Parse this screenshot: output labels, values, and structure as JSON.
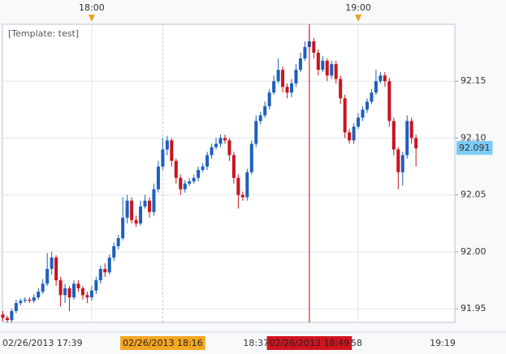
{
  "chart_data": {
    "type": "candlestick",
    "template_label": "[Template: test]",
    "x": [
      "17:40",
      "17:41",
      "17:42",
      "17:43",
      "17:44",
      "17:45",
      "17:46",
      "17:47",
      "17:48",
      "17:49",
      "17:50",
      "17:51",
      "17:52",
      "17:53",
      "17:54",
      "17:55",
      "17:56",
      "17:57",
      "17:58",
      "17:59",
      "18:00",
      "18:01",
      "18:02",
      "18:03",
      "18:04",
      "18:05",
      "18:06",
      "18:07",
      "18:08",
      "18:09",
      "18:10",
      "18:11",
      "18:12",
      "18:13",
      "18:14",
      "18:15",
      "18:16",
      "18:17",
      "18:18",
      "18:19",
      "18:20",
      "18:21",
      "18:22",
      "18:23",
      "18:24",
      "18:25",
      "18:26",
      "18:27",
      "18:28",
      "18:29",
      "18:30",
      "18:31",
      "18:32",
      "18:33",
      "18:34",
      "18:35",
      "18:36",
      "18:37",
      "18:38",
      "18:39",
      "18:40",
      "18:41",
      "18:42",
      "18:43",
      "18:44",
      "18:45",
      "18:46",
      "18:47",
      "18:48",
      "18:49",
      "18:50",
      "18:51",
      "18:52",
      "18:53",
      "18:54",
      "18:55",
      "18:56",
      "18:57",
      "18:58",
      "18:59",
      "19:00",
      "19:01",
      "19:02",
      "19:03",
      "19:04",
      "19:05",
      "19:06",
      "19:07",
      "19:08",
      "19:09",
      "19:10",
      "19:11",
      "19:12",
      "19:13"
    ],
    "open": [
      91.945,
      91.942,
      91.94,
      91.948,
      91.955,
      91.957,
      91.958,
      91.957,
      91.96,
      91.965,
      91.972,
      91.985,
      91.995,
      91.975,
      91.962,
      91.968,
      91.96,
      91.972,
      91.968,
      91.962,
      91.96,
      91.966,
      91.975,
      91.985,
      91.982,
      91.995,
      92.005,
      92.012,
      92.03,
      92.045,
      92.028,
      92.025,
      92.04,
      92.045,
      92.035,
      92.055,
      92.075,
      92.09,
      92.098,
      92.08,
      92.065,
      92.055,
      92.06,
      92.062,
      92.065,
      92.072,
      92.075,
      92.085,
      92.092,
      92.095,
      92.1,
      92.098,
      92.085,
      92.065,
      92.05,
      92.048,
      92.07,
      92.095,
      92.115,
      92.12,
      92.128,
      92.14,
      92.15,
      92.16,
      92.145,
      92.14,
      92.148,
      92.16,
      92.17,
      92.18,
      92.185,
      92.175,
      92.16,
      92.168,
      92.155,
      92.165,
      92.152,
      92.135,
      92.105,
      92.098,
      92.11,
      92.118,
      92.125,
      92.132,
      92.14,
      92.15,
      92.155,
      92.15,
      92.115,
      92.09,
      92.07,
      92.085,
      92.115,
      92.1
    ],
    "high": [
      91.948,
      91.944,
      91.95,
      91.958,
      91.959,
      91.96,
      91.96,
      91.963,
      91.968,
      91.976,
      91.999,
      92.0,
      91.997,
      91.978,
      91.972,
      91.97,
      91.975,
      91.975,
      91.97,
      91.965,
      91.97,
      91.978,
      91.988,
      91.99,
      91.998,
      92.008,
      92.015,
      92.048,
      92.05,
      92.048,
      92.032,
      92.045,
      92.05,
      92.048,
      92.06,
      92.08,
      92.1,
      92.102,
      92.1,
      92.082,
      92.068,
      92.063,
      92.065,
      92.068,
      92.075,
      92.078,
      92.088,
      92.095,
      92.1,
      92.103,
      92.103,
      92.1,
      92.088,
      92.068,
      92.053,
      92.073,
      92.098,
      92.12,
      92.123,
      92.132,
      92.143,
      92.155,
      92.17,
      92.163,
      92.148,
      92.152,
      92.165,
      92.175,
      92.185,
      92.195,
      92.188,
      92.178,
      92.172,
      92.17,
      92.168,
      92.168,
      92.155,
      92.138,
      92.108,
      92.113,
      92.122,
      92.128,
      92.135,
      92.143,
      92.16,
      92.158,
      92.158,
      92.153,
      92.118,
      92.092,
      92.088,
      92.12,
      92.118,
      92.103
    ],
    "low": [
      91.939,
      91.938,
      91.938,
      91.946,
      91.953,
      91.955,
      91.955,
      91.955,
      91.958,
      91.963,
      91.97,
      91.98,
      91.97,
      91.952,
      91.955,
      91.948,
      91.958,
      91.965,
      91.958,
      91.955,
      91.957,
      91.963,
      91.972,
      91.978,
      91.98,
      91.992,
      92.002,
      92.01,
      92.025,
      92.025,
      92.022,
      92.023,
      92.038,
      92.03,
      92.032,
      92.052,
      92.072,
      92.085,
      92.075,
      92.06,
      92.05,
      92.052,
      92.058,
      92.06,
      92.062,
      92.07,
      92.072,
      92.082,
      92.09,
      92.092,
      92.095,
      92.08,
      92.06,
      92.038,
      92.045,
      92.045,
      92.068,
      92.092,
      92.112,
      92.118,
      92.125,
      92.138,
      92.148,
      92.14,
      92.135,
      92.136,
      92.145,
      92.158,
      92.168,
      92.178,
      92.17,
      92.155,
      92.158,
      92.15,
      92.152,
      92.148,
      92.13,
      92.1,
      92.095,
      92.095,
      92.108,
      92.115,
      92.122,
      92.13,
      92.138,
      92.148,
      92.145,
      92.11,
      92.085,
      92.055,
      92.058,
      92.082,
      92.095,
      92.075
    ],
    "close": [
      91.942,
      91.94,
      91.948,
      91.955,
      91.957,
      91.958,
      91.957,
      91.96,
      91.965,
      91.972,
      91.985,
      91.995,
      91.975,
      91.962,
      91.968,
      91.96,
      91.972,
      91.968,
      91.962,
      91.96,
      91.966,
      91.975,
      91.985,
      91.982,
      91.995,
      92.005,
      92.012,
      92.03,
      92.045,
      92.028,
      92.025,
      92.04,
      92.045,
      92.035,
      92.055,
      92.075,
      92.09,
      92.098,
      92.08,
      92.065,
      92.055,
      92.06,
      92.062,
      92.065,
      92.072,
      92.075,
      92.085,
      92.092,
      92.095,
      92.1,
      92.098,
      92.085,
      92.065,
      92.05,
      92.048,
      92.07,
      92.095,
      92.115,
      92.12,
      92.128,
      92.14,
      92.15,
      92.16,
      92.145,
      92.14,
      92.148,
      92.16,
      92.17,
      92.18,
      92.185,
      92.175,
      92.16,
      92.168,
      92.155,
      92.165,
      92.152,
      92.135,
      92.105,
      92.098,
      92.11,
      92.118,
      92.125,
      92.132,
      92.14,
      92.15,
      92.155,
      92.15,
      92.115,
      92.09,
      92.07,
      92.085,
      92.115,
      92.1,
      92.091
    ],
    "up_color": "#1e5fbf",
    "down_color": "#c8141e",
    "xlim": [
      "17:39",
      "19:22"
    ],
    "xticks": [
      "18:00",
      "19:00"
    ],
    "xtick_marker_color": "#f0a020",
    "xlabels": [
      {
        "value": "17:39",
        "label": "02/26/2013 17:39"
      },
      {
        "value": "18:37",
        "label": "18:37"
      },
      {
        "value": "18:58",
        "label": "18:58"
      },
      {
        "value": "19:19",
        "label": "19:19"
      },
      {
        "value": "18:16",
        "label": "02/26/2013 18:16",
        "box": "#f5a623"
      },
      {
        "value": "18:49",
        "label": "02/26/2013 18:49",
        "box": "#d0141e"
      }
    ],
    "marker_lines": [
      {
        "x": "18:16",
        "color": "#c8c8c8",
        "dash": true
      },
      {
        "x": "18:49",
        "color": "#cc0000"
      }
    ],
    "ylim": [
      91.938,
      92.2
    ],
    "yticks": [
      91.95,
      {
        "value": 92,
        "label": "92.00"
      },
      92.05,
      {
        "value": 92.1,
        "label": "92.10"
      },
      92.15
    ],
    "last_price_color": "#7ccaf5",
    "grid": true
  }
}
